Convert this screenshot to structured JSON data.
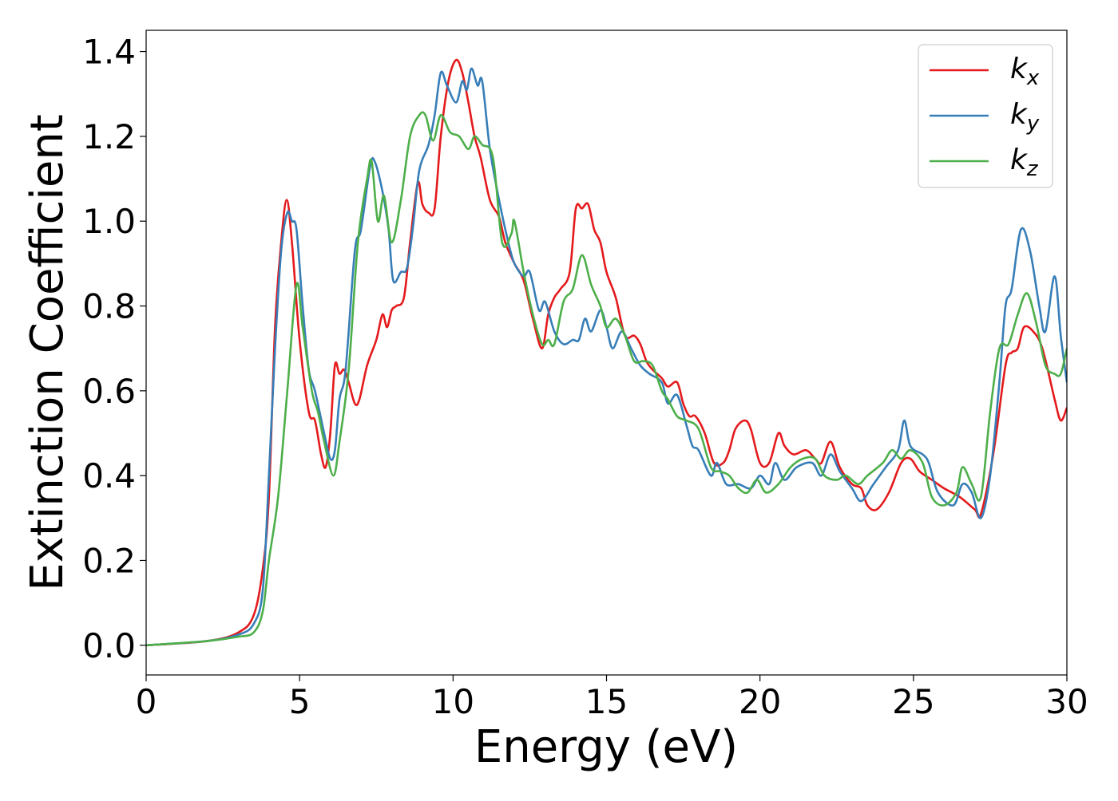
{
  "chart_data": {
    "type": "line",
    "title": "",
    "xlabel": "Energy (eV)",
    "ylabel": "Extinction Coefficient",
    "xlim": [
      0,
      30
    ],
    "ylim": [
      -0.07,
      1.45
    ],
    "xticks": [
      "0",
      "5",
      "10",
      "15",
      "20",
      "25",
      "30"
    ],
    "xtick_values": [
      0,
      5,
      10,
      15,
      20,
      25,
      30
    ],
    "yticks": [
      "0.0",
      "0.2",
      "0.4",
      "0.6",
      "0.8",
      "1.0",
      "1.2",
      "1.4"
    ],
    "ytick_values": [
      0,
      0.2,
      0.4,
      0.6,
      0.8,
      1.0,
      1.2,
      1.4
    ],
    "grid": false,
    "legend_position": "top-right",
    "series": [
      {
        "name": "kx",
        "base": "k",
        "sub": "x",
        "color": "#e41a1c",
        "points": [
          [
            0,
            0
          ],
          [
            2,
            0.01
          ],
          [
            3,
            0.03
          ],
          [
            3.5,
            0.07
          ],
          [
            3.8,
            0.18
          ],
          [
            4.0,
            0.35
          ],
          [
            4.2,
            0.75
          ],
          [
            4.4,
            0.95
          ],
          [
            4.58,
            1.05
          ],
          [
            4.75,
            0.95
          ],
          [
            5.0,
            0.72
          ],
          [
            5.3,
            0.55
          ],
          [
            5.5,
            0.53
          ],
          [
            5.7,
            0.45
          ],
          [
            5.85,
            0.42
          ],
          [
            6.0,
            0.5
          ],
          [
            6.15,
            0.66
          ],
          [
            6.3,
            0.64
          ],
          [
            6.45,
            0.65
          ],
          [
            6.6,
            0.62
          ],
          [
            6.8,
            0.57
          ],
          [
            6.95,
            0.58
          ],
          [
            7.2,
            0.66
          ],
          [
            7.5,
            0.72
          ],
          [
            7.7,
            0.78
          ],
          [
            7.85,
            0.75
          ],
          [
            8.0,
            0.79
          ],
          [
            8.15,
            0.8
          ],
          [
            8.4,
            0.82
          ],
          [
            8.6,
            0.95
          ],
          [
            8.85,
            1.09
          ],
          [
            9.0,
            1.04
          ],
          [
            9.2,
            1.02
          ],
          [
            9.4,
            1.03
          ],
          [
            9.6,
            1.2
          ],
          [
            9.85,
            1.33
          ],
          [
            10.1,
            1.38
          ],
          [
            10.3,
            1.35
          ],
          [
            10.5,
            1.28
          ],
          [
            10.7,
            1.2
          ],
          [
            10.9,
            1.15
          ],
          [
            11.2,
            1.05
          ],
          [
            11.5,
            1.01
          ],
          [
            11.7,
            0.95
          ],
          [
            12.0,
            0.9
          ],
          [
            12.3,
            0.86
          ],
          [
            12.6,
            0.77
          ],
          [
            12.9,
            0.7
          ],
          [
            13.1,
            0.78
          ],
          [
            13.3,
            0.82
          ],
          [
            13.5,
            0.84
          ],
          [
            13.8,
            0.88
          ],
          [
            14.0,
            1.03
          ],
          [
            14.2,
            1.03
          ],
          [
            14.4,
            1.04
          ],
          [
            14.6,
            0.98
          ],
          [
            14.8,
            0.95
          ],
          [
            15.0,
            0.88
          ],
          [
            15.3,
            0.82
          ],
          [
            15.6,
            0.73
          ],
          [
            15.9,
            0.73
          ],
          [
            16.1,
            0.71
          ],
          [
            16.3,
            0.67
          ],
          [
            16.5,
            0.65
          ],
          [
            16.8,
            0.63
          ],
          [
            17.0,
            0.61
          ],
          [
            17.3,
            0.62
          ],
          [
            17.5,
            0.57
          ],
          [
            17.7,
            0.54
          ],
          [
            17.9,
            0.54
          ],
          [
            18.2,
            0.5
          ],
          [
            18.5,
            0.43
          ],
          [
            18.8,
            0.43
          ],
          [
            19.0,
            0.46
          ],
          [
            19.2,
            0.51
          ],
          [
            19.5,
            0.53
          ],
          [
            19.7,
            0.51
          ],
          [
            20.0,
            0.43
          ],
          [
            20.3,
            0.43
          ],
          [
            20.6,
            0.5
          ],
          [
            20.8,
            0.47
          ],
          [
            21.1,
            0.45
          ],
          [
            21.5,
            0.46
          ],
          [
            21.8,
            0.44
          ],
          [
            22.0,
            0.43
          ],
          [
            22.3,
            0.48
          ],
          [
            22.6,
            0.42
          ],
          [
            23.0,
            0.38
          ],
          [
            23.3,
            0.37
          ],
          [
            23.5,
            0.33
          ],
          [
            23.8,
            0.32
          ],
          [
            24.2,
            0.36
          ],
          [
            24.6,
            0.43
          ],
          [
            24.9,
            0.44
          ],
          [
            25.2,
            0.41
          ],
          [
            25.6,
            0.39
          ],
          [
            26.0,
            0.37
          ],
          [
            26.5,
            0.35
          ],
          [
            27.0,
            0.32
          ],
          [
            27.2,
            0.31
          ],
          [
            27.6,
            0.45
          ],
          [
            28.0,
            0.66
          ],
          [
            28.2,
            0.69
          ],
          [
            28.4,
            0.7
          ],
          [
            28.6,
            0.75
          ],
          [
            28.9,
            0.74
          ],
          [
            29.2,
            0.7
          ],
          [
            29.6,
            0.58
          ],
          [
            29.8,
            0.53
          ],
          [
            30,
            0.56
          ]
        ]
      },
      {
        "name": "ky",
        "base": "k",
        "sub": "y",
        "color": "#377eb8",
        "points": [
          [
            0,
            0
          ],
          [
            2,
            0.01
          ],
          [
            3,
            0.025
          ],
          [
            3.5,
            0.05
          ],
          [
            3.8,
            0.13
          ],
          [
            4.0,
            0.4
          ],
          [
            4.2,
            0.7
          ],
          [
            4.4,
            0.93
          ],
          [
            4.6,
            1.02
          ],
          [
            4.75,
            1.0
          ],
          [
            4.9,
            0.98
          ],
          [
            5.1,
            0.8
          ],
          [
            5.3,
            0.65
          ],
          [
            5.5,
            0.6
          ],
          [
            5.8,
            0.5
          ],
          [
            6.0,
            0.44
          ],
          [
            6.15,
            0.46
          ],
          [
            6.3,
            0.58
          ],
          [
            6.5,
            0.65
          ],
          [
            6.8,
            0.93
          ],
          [
            7.0,
            0.98
          ],
          [
            7.3,
            1.13
          ],
          [
            7.45,
            1.14
          ],
          [
            7.7,
            1.07
          ],
          [
            7.9,
            0.98
          ],
          [
            8.05,
            0.86
          ],
          [
            8.3,
            0.88
          ],
          [
            8.5,
            0.89
          ],
          [
            8.7,
            0.99
          ],
          [
            8.9,
            1.12
          ],
          [
            9.2,
            1.18
          ],
          [
            9.4,
            1.25
          ],
          [
            9.6,
            1.35
          ],
          [
            9.8,
            1.32
          ],
          [
            10.1,
            1.28
          ],
          [
            10.3,
            1.33
          ],
          [
            10.45,
            1.31
          ],
          [
            10.6,
            1.36
          ],
          [
            10.8,
            1.32
          ],
          [
            10.95,
            1.33
          ],
          [
            11.2,
            1.17
          ],
          [
            11.5,
            1.05
          ],
          [
            11.8,
            0.95
          ],
          [
            12.0,
            0.9
          ],
          [
            12.3,
            0.87
          ],
          [
            12.5,
            0.88
          ],
          [
            12.8,
            0.79
          ],
          [
            13.0,
            0.81
          ],
          [
            13.3,
            0.74
          ],
          [
            13.6,
            0.71
          ],
          [
            13.9,
            0.72
          ],
          [
            14.1,
            0.72
          ],
          [
            14.3,
            0.77
          ],
          [
            14.5,
            0.74
          ],
          [
            14.8,
            0.79
          ],
          [
            15.0,
            0.75
          ],
          [
            15.2,
            0.7
          ],
          [
            15.5,
            0.74
          ],
          [
            15.8,
            0.7
          ],
          [
            16.1,
            0.66
          ],
          [
            16.4,
            0.64
          ],
          [
            16.8,
            0.62
          ],
          [
            17.0,
            0.57
          ],
          [
            17.3,
            0.59
          ],
          [
            17.6,
            0.52
          ],
          [
            17.8,
            0.47
          ],
          [
            18.0,
            0.46
          ],
          [
            18.4,
            0.4
          ],
          [
            18.6,
            0.43
          ],
          [
            18.9,
            0.38
          ],
          [
            19.3,
            0.38
          ],
          [
            19.7,
            0.37
          ],
          [
            20.0,
            0.4
          ],
          [
            20.3,
            0.38
          ],
          [
            20.5,
            0.43
          ],
          [
            20.8,
            0.39
          ],
          [
            21.2,
            0.42
          ],
          [
            21.7,
            0.43
          ],
          [
            22.0,
            0.4
          ],
          [
            22.3,
            0.45
          ],
          [
            22.6,
            0.41
          ],
          [
            23.0,
            0.37
          ],
          [
            23.3,
            0.34
          ],
          [
            23.7,
            0.38
          ],
          [
            24.1,
            0.42
          ],
          [
            24.5,
            0.46
          ],
          [
            24.7,
            0.53
          ],
          [
            24.9,
            0.47
          ],
          [
            25.3,
            0.45
          ],
          [
            25.5,
            0.43
          ],
          [
            25.8,
            0.36
          ],
          [
            26.3,
            0.33
          ],
          [
            26.6,
            0.38
          ],
          [
            26.9,
            0.36
          ],
          [
            27.2,
            0.3
          ],
          [
            27.5,
            0.4
          ],
          [
            27.8,
            0.62
          ],
          [
            28.0,
            0.8
          ],
          [
            28.2,
            0.84
          ],
          [
            28.5,
            0.98
          ],
          [
            28.8,
            0.93
          ],
          [
            29.1,
            0.8
          ],
          [
            29.3,
            0.74
          ],
          [
            29.6,
            0.87
          ],
          [
            29.8,
            0.73
          ],
          [
            30,
            0.62
          ]
        ]
      },
      {
        "name": "kz",
        "base": "k",
        "sub": "z",
        "color": "#4daf4a",
        "points": [
          [
            0,
            0
          ],
          [
            2,
            0.01
          ],
          [
            3,
            0.02
          ],
          [
            3.5,
            0.03
          ],
          [
            3.8,
            0.08
          ],
          [
            4.0,
            0.2
          ],
          [
            4.3,
            0.35
          ],
          [
            4.6,
            0.6
          ],
          [
            4.9,
            0.85
          ],
          [
            5.1,
            0.75
          ],
          [
            5.4,
            0.6
          ],
          [
            5.6,
            0.55
          ],
          [
            5.8,
            0.48
          ],
          [
            6.1,
            0.4
          ],
          [
            6.3,
            0.48
          ],
          [
            6.6,
            0.65
          ],
          [
            6.9,
            0.95
          ],
          [
            7.2,
            1.1
          ],
          [
            7.35,
            1.14
          ],
          [
            7.55,
            1.0
          ],
          [
            7.75,
            1.06
          ],
          [
            8.0,
            0.95
          ],
          [
            8.3,
            1.05
          ],
          [
            8.6,
            1.2
          ],
          [
            8.9,
            1.25
          ],
          [
            9.1,
            1.25
          ],
          [
            9.35,
            1.19
          ],
          [
            9.6,
            1.25
          ],
          [
            9.9,
            1.21
          ],
          [
            10.2,
            1.2
          ],
          [
            10.5,
            1.17
          ],
          [
            10.7,
            1.2
          ],
          [
            10.95,
            1.18
          ],
          [
            11.3,
            1.15
          ],
          [
            11.6,
            0.95
          ],
          [
            11.9,
            0.97
          ],
          [
            12.0,
            1.0
          ],
          [
            12.3,
            0.88
          ],
          [
            12.6,
            0.78
          ],
          [
            12.9,
            0.71
          ],
          [
            13.1,
            0.72
          ],
          [
            13.3,
            0.71
          ],
          [
            13.6,
            0.81
          ],
          [
            13.9,
            0.84
          ],
          [
            14.2,
            0.92
          ],
          [
            14.5,
            0.85
          ],
          [
            14.8,
            0.8
          ],
          [
            15.0,
            0.75
          ],
          [
            15.3,
            0.77
          ],
          [
            15.6,
            0.73
          ],
          [
            15.9,
            0.67
          ],
          [
            16.2,
            0.67
          ],
          [
            16.5,
            0.66
          ],
          [
            16.8,
            0.6
          ],
          [
            17.0,
            0.58
          ],
          [
            17.3,
            0.54
          ],
          [
            17.6,
            0.53
          ],
          [
            18.0,
            0.51
          ],
          [
            18.4,
            0.42
          ],
          [
            18.7,
            0.41
          ],
          [
            19.0,
            0.4
          ],
          [
            19.3,
            0.37
          ],
          [
            19.6,
            0.36
          ],
          [
            19.9,
            0.39
          ],
          [
            20.2,
            0.36
          ],
          [
            20.6,
            0.38
          ],
          [
            21.0,
            0.42
          ],
          [
            21.4,
            0.44
          ],
          [
            21.8,
            0.44
          ],
          [
            22.1,
            0.4
          ],
          [
            22.5,
            0.39
          ],
          [
            22.8,
            0.4
          ],
          [
            23.2,
            0.38
          ],
          [
            23.5,
            0.4
          ],
          [
            24.0,
            0.43
          ],
          [
            24.3,
            0.46
          ],
          [
            24.6,
            0.44
          ],
          [
            24.9,
            0.46
          ],
          [
            25.3,
            0.43
          ],
          [
            25.6,
            0.35
          ],
          [
            26.0,
            0.33
          ],
          [
            26.4,
            0.36
          ],
          [
            26.6,
            0.42
          ],
          [
            26.9,
            0.38
          ],
          [
            27.2,
            0.35
          ],
          [
            27.5,
            0.55
          ],
          [
            27.8,
            0.7
          ],
          [
            28.1,
            0.71
          ],
          [
            28.4,
            0.78
          ],
          [
            28.7,
            0.83
          ],
          [
            29.0,
            0.76
          ],
          [
            29.3,
            0.66
          ],
          [
            29.6,
            0.64
          ],
          [
            29.8,
            0.64
          ],
          [
            30,
            0.7
          ]
        ]
      }
    ]
  }
}
